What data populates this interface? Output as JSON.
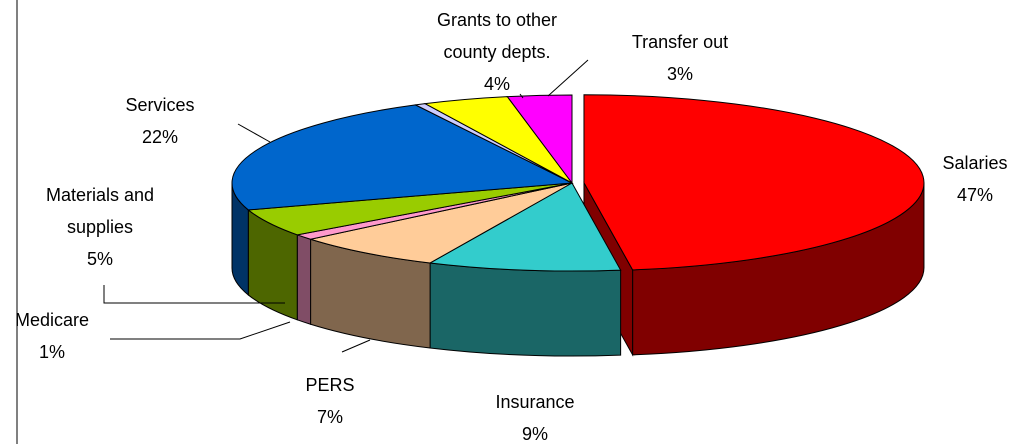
{
  "chart_data": {
    "type": "pie3d",
    "categories": [
      "Salaries",
      "Insurance",
      "PERS",
      "Medicare",
      "Materials and supplies",
      "Services",
      null,
      "Grants to other county depts.",
      "Transfer out"
    ],
    "values": [
      47,
      9,
      7,
      1,
      5,
      22,
      0.5,
      4,
      3
    ],
    "value_labels": [
      "47%",
      "9%",
      "7%",
      "1%",
      "5%",
      "22%",
      null,
      "4%",
      "3%"
    ],
    "colors": [
      "#ff0000",
      "#33cccc",
      "#ffcc99",
      "#ff99cc",
      "#99cc00",
      "#0066cc",
      "#ccccff",
      "#ffff00",
      "#ff00ff"
    ],
    "exploded": [
      true,
      false,
      false,
      false,
      false,
      false,
      false,
      false,
      false
    ]
  }
}
